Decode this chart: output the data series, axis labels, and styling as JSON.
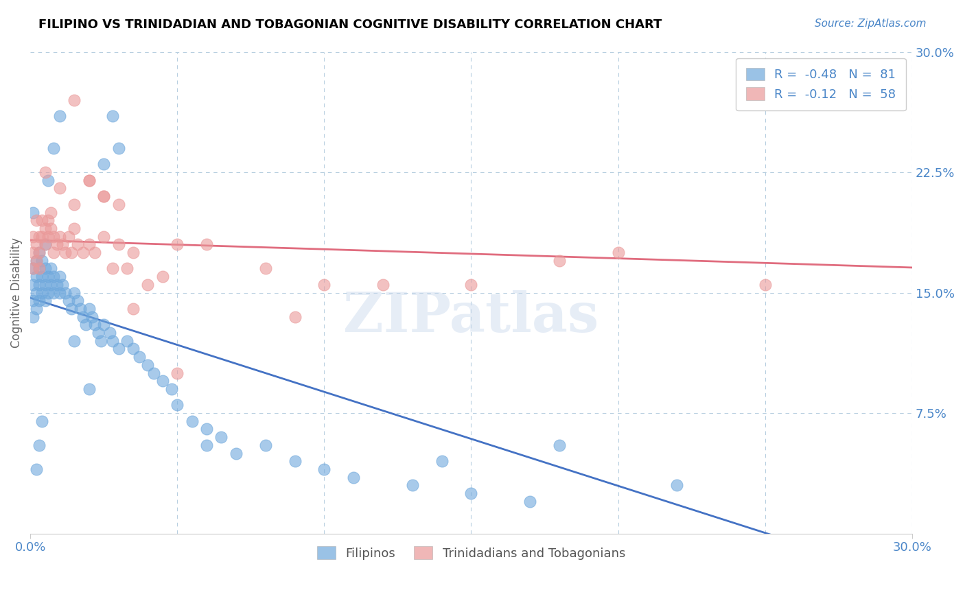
{
  "title": "FILIPINO VS TRINIDADIAN AND TOBAGONIAN COGNITIVE DISABILITY CORRELATION CHART",
  "source": "Source: ZipAtlas.com",
  "ylabel": "Cognitive Disability",
  "xmin": 0.0,
  "xmax": 0.3,
  "ymin": 0.0,
  "ymax": 0.3,
  "blue_color": "#6fa8dc",
  "pink_color": "#ea9999",
  "blue_line_color": "#4472c4",
  "pink_line_color": "#e06c7e",
  "blue_R": -0.48,
  "blue_N": 81,
  "pink_R": -0.12,
  "pink_N": 58,
  "legend_label_blue": "Filipinos",
  "legend_label_pink": "Trinidadians and Tobagonians",
  "watermark": "ZIPatlas",
  "title_color": "#000000",
  "axis_color": "#4a86c8",
  "background_color": "#ffffff",
  "blue_points_x": [
    0.001,
    0.001,
    0.001,
    0.001,
    0.002,
    0.002,
    0.002,
    0.002,
    0.003,
    0.003,
    0.003,
    0.003,
    0.004,
    0.004,
    0.004,
    0.005,
    0.005,
    0.005,
    0.006,
    0.006,
    0.007,
    0.007,
    0.008,
    0.008,
    0.009,
    0.01,
    0.01,
    0.011,
    0.012,
    0.013,
    0.014,
    0.015,
    0.016,
    0.017,
    0.018,
    0.019,
    0.02,
    0.021,
    0.022,
    0.023,
    0.024,
    0.025,
    0.027,
    0.028,
    0.03,
    0.033,
    0.035,
    0.037,
    0.04,
    0.042,
    0.045,
    0.048,
    0.05,
    0.055,
    0.06,
    0.065,
    0.07,
    0.08,
    0.09,
    0.1,
    0.11,
    0.13,
    0.15,
    0.17,
    0.03,
    0.028,
    0.025,
    0.01,
    0.008,
    0.006,
    0.005,
    0.004,
    0.003,
    0.002,
    0.001,
    0.02,
    0.015,
    0.06,
    0.14,
    0.22,
    0.18
  ],
  "blue_points_y": [
    0.165,
    0.155,
    0.145,
    0.135,
    0.17,
    0.16,
    0.15,
    0.14,
    0.175,
    0.165,
    0.155,
    0.145,
    0.17,
    0.16,
    0.15,
    0.165,
    0.155,
    0.145,
    0.16,
    0.15,
    0.165,
    0.155,
    0.16,
    0.15,
    0.155,
    0.16,
    0.15,
    0.155,
    0.15,
    0.145,
    0.14,
    0.15,
    0.145,
    0.14,
    0.135,
    0.13,
    0.14,
    0.135,
    0.13,
    0.125,
    0.12,
    0.13,
    0.125,
    0.12,
    0.115,
    0.12,
    0.115,
    0.11,
    0.105,
    0.1,
    0.095,
    0.09,
    0.08,
    0.07,
    0.065,
    0.06,
    0.05,
    0.055,
    0.045,
    0.04,
    0.035,
    0.03,
    0.025,
    0.02,
    0.24,
    0.26,
    0.23,
    0.26,
    0.24,
    0.22,
    0.18,
    0.07,
    0.055,
    0.04,
    0.2,
    0.09,
    0.12,
    0.055,
    0.045,
    0.03,
    0.055
  ],
  "pink_points_x": [
    0.001,
    0.001,
    0.001,
    0.002,
    0.002,
    0.002,
    0.003,
    0.003,
    0.003,
    0.004,
    0.004,
    0.005,
    0.005,
    0.006,
    0.006,
    0.007,
    0.007,
    0.008,
    0.008,
    0.009,
    0.01,
    0.011,
    0.012,
    0.013,
    0.014,
    0.015,
    0.016,
    0.018,
    0.02,
    0.022,
    0.025,
    0.028,
    0.03,
    0.033,
    0.035,
    0.04,
    0.045,
    0.05,
    0.06,
    0.08,
    0.09,
    0.1,
    0.12,
    0.15,
    0.2,
    0.25,
    0.005,
    0.01,
    0.015,
    0.02,
    0.025,
    0.03,
    0.015,
    0.02,
    0.025,
    0.035,
    0.05,
    0.18
  ],
  "pink_points_y": [
    0.185,
    0.175,
    0.165,
    0.18,
    0.195,
    0.17,
    0.185,
    0.175,
    0.165,
    0.195,
    0.185,
    0.18,
    0.19,
    0.195,
    0.185,
    0.2,
    0.19,
    0.185,
    0.175,
    0.18,
    0.185,
    0.18,
    0.175,
    0.185,
    0.175,
    0.19,
    0.18,
    0.175,
    0.18,
    0.175,
    0.185,
    0.165,
    0.18,
    0.165,
    0.175,
    0.155,
    0.16,
    0.18,
    0.18,
    0.165,
    0.135,
    0.155,
    0.155,
    0.155,
    0.175,
    0.155,
    0.225,
    0.215,
    0.205,
    0.22,
    0.21,
    0.205,
    0.27,
    0.22,
    0.21,
    0.14,
    0.1,
    0.17
  ]
}
